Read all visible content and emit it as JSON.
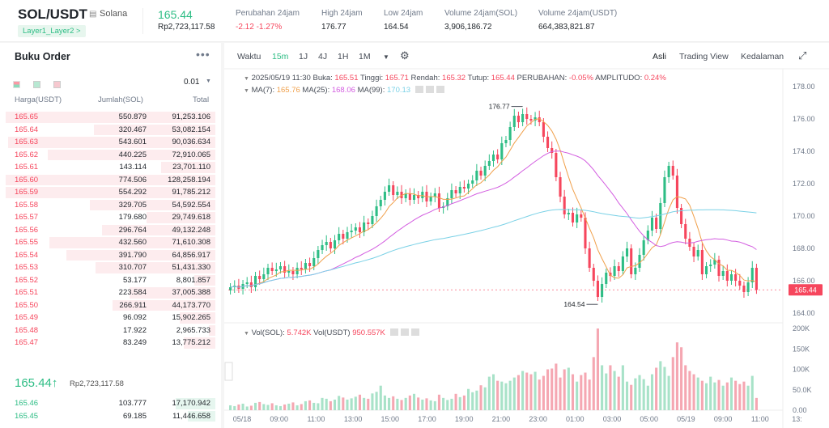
{
  "header": {
    "pair": "SOL/USDT",
    "name": "Solana",
    "tag": "Layer1_Layer2 >",
    "last_price": "165.44",
    "last_price_idr": "Rp2,723,117.58",
    "stats": [
      {
        "label": "Perubahan 24jam",
        "value": "-2.12 -1.27%",
        "color": "red"
      },
      {
        "label": "High 24jam",
        "value": "176.77",
        "color": ""
      },
      {
        "label": "Low 24jam",
        "value": "164.54",
        "color": ""
      },
      {
        "label": "Volume 24jam(SOL)",
        "value": "3,906,186.72",
        "color": ""
      },
      {
        "label": "Volume 24jam(USDT)",
        "value": "664,383,821.87",
        "color": ""
      }
    ]
  },
  "orderbook": {
    "title": "Buku Order",
    "more": "•••",
    "step": "0.01",
    "col_price": "Harga(USDT)",
    "col_amount": "Jumlah(SOL)",
    "col_total": "Total",
    "asks": [
      {
        "price": "165.65",
        "amount": "550.879",
        "total": "91,253.106",
        "depth": 1.0
      },
      {
        "price": "165.64",
        "amount": "320.467",
        "total": "53,082.154",
        "depth": 0.58
      },
      {
        "price": "165.63",
        "amount": "543.601",
        "total": "90,036.634",
        "depth": 0.99
      },
      {
        "price": "165.62",
        "amount": "440.225",
        "total": "72,910.065",
        "depth": 0.8
      },
      {
        "price": "165.61",
        "amount": "143.114",
        "total": "23,701.110",
        "depth": 0.26
      },
      {
        "price": "165.60",
        "amount": "774.506",
        "total": "128,258.194",
        "depth": 1.0
      },
      {
        "price": "165.59",
        "amount": "554.292",
        "total": "91,785.212",
        "depth": 1.0
      },
      {
        "price": "165.58",
        "amount": "329.705",
        "total": "54,592.554",
        "depth": 0.6
      },
      {
        "price": "165.57",
        "amount": "179.680",
        "total": "29,749.618",
        "depth": 0.33
      },
      {
        "price": "165.56",
        "amount": "296.764",
        "total": "49,132.248",
        "depth": 0.54
      },
      {
        "price": "165.55",
        "amount": "432.560",
        "total": "71,610.308",
        "depth": 0.79
      },
      {
        "price": "165.54",
        "amount": "391.790",
        "total": "64,856.917",
        "depth": 0.71
      },
      {
        "price": "165.53",
        "amount": "310.707",
        "total": "51,431.330",
        "depth": 0.57
      },
      {
        "price": "165.52",
        "amount": "53.177",
        "total": "8,801.857",
        "depth": 0.1
      },
      {
        "price": "165.51",
        "amount": "223.584",
        "total": "37,005.388",
        "depth": 0.41
      },
      {
        "price": "165.50",
        "amount": "266.911",
        "total": "44,173.770",
        "depth": 0.49
      },
      {
        "price": "165.49",
        "amount": "96.092",
        "total": "15,902.265",
        "depth": 0.17
      },
      {
        "price": "165.48",
        "amount": "17.922",
        "total": "2,965.733",
        "depth": 0.03
      },
      {
        "price": "165.47",
        "amount": "83.249",
        "total": "13,775.212",
        "depth": 0.15
      }
    ],
    "last_price": "165.44",
    "arrow": "↑",
    "last_price_idr": "Rp2,723,117.58",
    "bids": [
      {
        "price": "165.46",
        "amount": "103.777",
        "total": "17,170.942",
        "depth": 0.19
      },
      {
        "price": "165.45",
        "amount": "69.185",
        "total": "11,446.658",
        "depth": 0.13
      }
    ]
  },
  "toolbar": {
    "time_label": "Waktu",
    "intervals": [
      "15m",
      "1J",
      "4J",
      "1H",
      "1M"
    ],
    "active_interval": "15m",
    "views": [
      "Asli",
      "Trading View",
      "Kedalaman"
    ]
  },
  "ohlc": {
    "datetime": "2025/05/19 11:30",
    "open_label": "Buka:",
    "open": "165.51",
    "high_label": "Tinggi:",
    "high": "165.71",
    "low_label": "Rendah:",
    "low": "165.32",
    "close_label": "Tutup:",
    "close": "165.44",
    "change_label": "PERUBAHAN:",
    "change": "-0.05%",
    "amp_label": "AMPLITUDO:",
    "amp": "0.24%"
  },
  "ma": {
    "ma7_label": "MA(7):",
    "ma7": "165.76",
    "ma25_label": "MA(25):",
    "ma25": "168.06",
    "ma99_label": "MA(99):",
    "ma99": "170.13"
  },
  "vol": {
    "sol_label": "Vol(SOL):",
    "sol": "5.742K",
    "usdt_label": "Vol(USDT)",
    "usdt": "950.557K"
  },
  "chart_data": {
    "type": "candlestick",
    "price_axis": [
      "178.00",
      "176.00",
      "174.00",
      "172.00",
      "170.00",
      "168.00",
      "166.00",
      "164.00"
    ],
    "ylim": [
      164,
      178
    ],
    "volume_axis": [
      "200K",
      "150K",
      "100K",
      "50.0K",
      "0.00"
    ],
    "volume_ylim": [
      0,
      200
    ],
    "x_ticks": [
      "05/18",
      "09:00",
      "11:00",
      "13:00",
      "15:00",
      "17:00",
      "19:00",
      "21:00",
      "23:00",
      "01:00",
      "03:00",
      "05:00",
      "05/19",
      "09:00",
      "11:00",
      "13:"
    ],
    "last_price_tag": "165.44",
    "high_marker": "176.77",
    "low_marker": "164.54",
    "closes": [
      165.6,
      165.7,
      165.5,
      165.8,
      165.9,
      165.6,
      166.3,
      166.1,
      166.4,
      166.8,
      166.6,
      166.7,
      166.9,
      166.5,
      166.6,
      166.4,
      166.8,
      166.7,
      167.1,
      166.9,
      167.4,
      167.9,
      168.2,
      168.4,
      168.0,
      168.5,
      168.9,
      168.6,
      169.0,
      169.1,
      169.3,
      169.0,
      169.6,
      169.5,
      170.0,
      170.6,
      171.0,
      171.5,
      171.9,
      171.3,
      171.5,
      171.1,
      171.4,
      171.0,
      171.3,
      171.1,
      171.5,
      170.9,
      171.2,
      171.4,
      170.5,
      170.6,
      171.1,
      171.6,
      171.4,
      171.8,
      171.7,
      172.0,
      172.2,
      172.8,
      172.5,
      173.1,
      173.4,
      173.8,
      173.5,
      174.5,
      174.7,
      175.5,
      176.2,
      175.8,
      176.3,
      176.0,
      175.9,
      176.1,
      175.8,
      174.9,
      174.2,
      173.9,
      172.4,
      171.2,
      170.1,
      170.2,
      169.6,
      170.1,
      169.9,
      168.0,
      166.8,
      166.0,
      165.0,
      165.8,
      166.5,
      166.3,
      166.9,
      166.6,
      167.5,
      168.0,
      166.4,
      166.8,
      167.6,
      168.5,
      169.1,
      169.9,
      169.2,
      170.8,
      172.4,
      173.1,
      172.5,
      170.5,
      169.5,
      168.6,
      168.1,
      167.5,
      167.9,
      166.4,
      166.9,
      167.0,
      167.3,
      166.3,
      166.6,
      166.0,
      166.4,
      166.0,
      165.7,
      165.3,
      165.9,
      166.8,
      165.44
    ],
    "volumes": [
      12,
      10,
      14,
      16,
      9,
      11,
      18,
      20,
      15,
      13,
      17,
      12,
      10,
      14,
      16,
      19,
      12,
      15,
      22,
      24,
      18,
      17,
      30,
      28,
      22,
      26,
      35,
      31,
      26,
      29,
      33,
      38,
      30,
      28,
      41,
      45,
      60,
      36,
      30,
      34,
      28,
      25,
      30,
      36,
      40,
      31,
      26,
      29,
      24,
      22,
      38,
      30,
      25,
      28,
      40,
      32,
      36,
      52,
      44,
      48,
      61,
      56,
      82,
      88,
      72,
      70,
      66,
      72,
      80,
      86,
      96,
      92,
      88,
      94,
      75,
      84,
      100,
      102,
      114,
      80,
      100,
      104,
      88,
      70,
      86,
      92,
      75,
      130,
      200,
      110,
      90,
      110,
      96,
      82,
      110,
      70,
      62,
      78,
      86,
      76,
      60,
      88,
      104,
      120,
      106,
      84,
      130,
      166,
      154,
      110,
      96,
      88,
      80,
      72,
      66,
      82,
      68,
      74,
      60,
      68,
      80,
      72,
      64,
      70,
      60,
      84,
      30
    ]
  }
}
